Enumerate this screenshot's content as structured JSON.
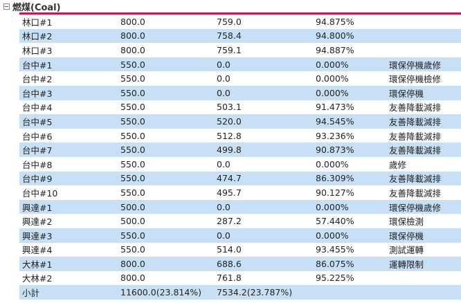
{
  "section": {
    "title": "燃煤(Coal)"
  },
  "rows": [
    {
      "unit": "林口#1",
      "capacity": "800.0",
      "output": "759.0",
      "ratio": "94.875%",
      "note": ""
    },
    {
      "unit": "林口#2",
      "capacity": "800.0",
      "output": "758.4",
      "ratio": "94.800%",
      "note": ""
    },
    {
      "unit": "林口#3",
      "capacity": "800.0",
      "output": "759.1",
      "ratio": "94.887%",
      "note": ""
    },
    {
      "unit": "台中#1",
      "capacity": "550.0",
      "output": "0.0",
      "ratio": "0.000%",
      "note": "環保停機歲修"
    },
    {
      "unit": "台中#2",
      "capacity": "550.0",
      "output": "0.0",
      "ratio": "0.000%",
      "note": "環保停機檢修"
    },
    {
      "unit": "台中#3",
      "capacity": "550.0",
      "output": "0.0",
      "ratio": "0.000%",
      "note": "環保停機"
    },
    {
      "unit": "台中#4",
      "capacity": "550.0",
      "output": "503.1",
      "ratio": "91.473%",
      "note": "友善降載減排"
    },
    {
      "unit": "台中#5",
      "capacity": "550.0",
      "output": "520.0",
      "ratio": "94.545%",
      "note": "友善降載減排"
    },
    {
      "unit": "台中#6",
      "capacity": "550.0",
      "output": "512.8",
      "ratio": "93.236%",
      "note": "友善降載減排"
    },
    {
      "unit": "台中#7",
      "capacity": "550.0",
      "output": "499.8",
      "ratio": "90.873%",
      "note": "友善降載減排"
    },
    {
      "unit": "台中#8",
      "capacity": "550.0",
      "output": "0.0",
      "ratio": "0.000%",
      "note": "歲修"
    },
    {
      "unit": "台中#9",
      "capacity": "550.0",
      "output": "474.7",
      "ratio": "86.309%",
      "note": "友善降載減排"
    },
    {
      "unit": "台中#10",
      "capacity": "550.0",
      "output": "495.7",
      "ratio": "90.127%",
      "note": "友善降載減排"
    },
    {
      "unit": "興達#1",
      "capacity": "500.0",
      "output": "0.0",
      "ratio": "0.000%",
      "note": "環保停機歲修"
    },
    {
      "unit": "興達#2",
      "capacity": "500.0",
      "output": "287.2",
      "ratio": "57.440%",
      "note": "環保檢測"
    },
    {
      "unit": "興達#3",
      "capacity": "550.0",
      "output": "0.0",
      "ratio": "0.000%",
      "note": "環保停機"
    },
    {
      "unit": "興達#4",
      "capacity": "550.0",
      "output": "514.0",
      "ratio": "93.455%",
      "note": "測試運轉"
    },
    {
      "unit": "大林#1",
      "capacity": "800.0",
      "output": "688.6",
      "ratio": "86.075%",
      "note": "運轉限制"
    },
    {
      "unit": "大林#2",
      "capacity": "800.0",
      "output": "761.8",
      "ratio": "95.225%",
      "note": ""
    },
    {
      "unit": "小計",
      "capacity": "11600.0(23.814%)",
      "output": "7534.2(23.787%)",
      "ratio": "",
      "note": ""
    }
  ]
}
